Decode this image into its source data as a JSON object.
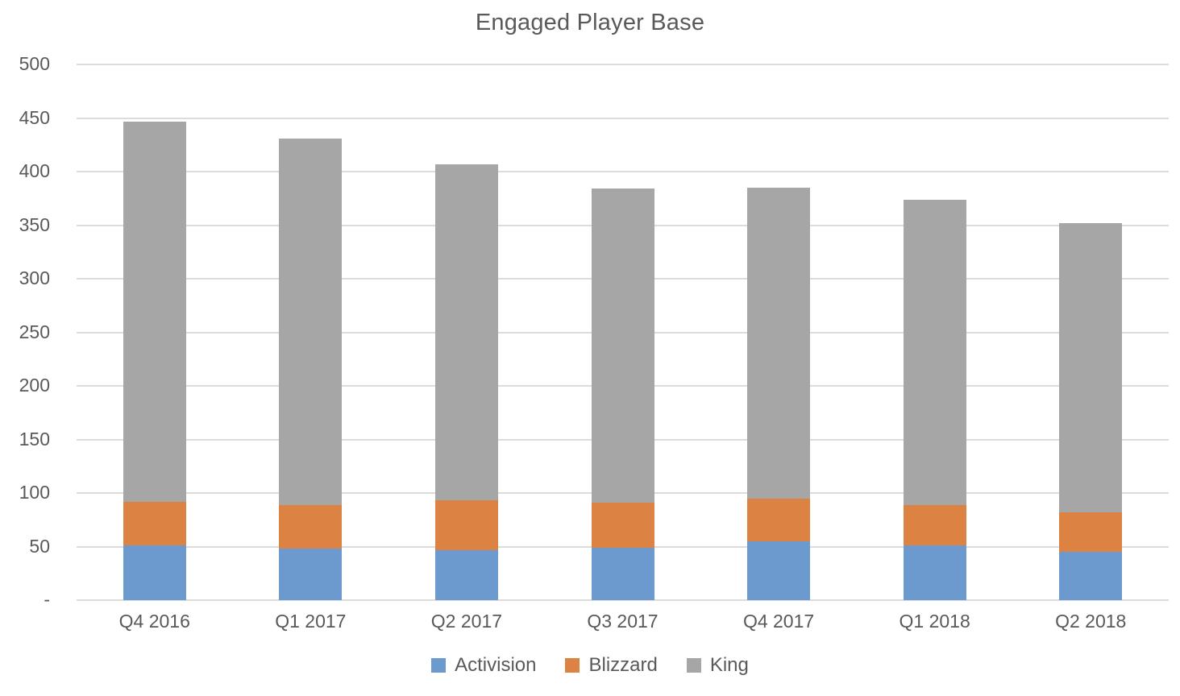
{
  "title": "Engaged Player Base",
  "colors": {
    "activision": "#6C99CE",
    "blizzard": "#DC8344",
    "king": "#A6A6A6",
    "text": "#595959",
    "gridline": "#DCDCDC"
  },
  "chart_data": {
    "type": "bar",
    "stacked": true,
    "title": "Engaged Player Base",
    "categories": [
      "Q4 2016",
      "Q1 2017",
      "Q2 2017",
      "Q3 2017",
      "Q4 2017",
      "Q1 2018",
      "Q2 2018"
    ],
    "series": [
      {
        "name": "Activision",
        "color": "#6C99CE",
        "values": [
          51,
          48,
          47,
          49,
          55,
          51,
          45
        ]
      },
      {
        "name": "Blizzard",
        "color": "#DC8344",
        "values": [
          41,
          41,
          46,
          42,
          40,
          38,
          37
        ]
      },
      {
        "name": "King",
        "color": "#A6A6A6",
        "values": [
          355,
          342,
          314,
          293,
          290,
          285,
          270
        ]
      }
    ],
    "totals": [
      447,
      431,
      407,
      384,
      385,
      374,
      352
    ],
    "xlabel": "",
    "ylabel": "",
    "ylim": [
      0,
      500
    ],
    "ytick_values": [
      500,
      450,
      400,
      350,
      300,
      250,
      200,
      150,
      100,
      50,
      0
    ],
    "ytick_labels": [
      "500",
      "450",
      "400",
      "350",
      "300",
      "250",
      "200",
      "150",
      "100",
      "50",
      "-"
    ],
    "grid": true,
    "legend_position": "bottom"
  },
  "legend": {
    "items": [
      {
        "label": "Activision",
        "color": "#6C99CE"
      },
      {
        "label": "Blizzard",
        "color": "#DC8344"
      },
      {
        "label": "King",
        "color": "#A6A6A6"
      }
    ]
  }
}
